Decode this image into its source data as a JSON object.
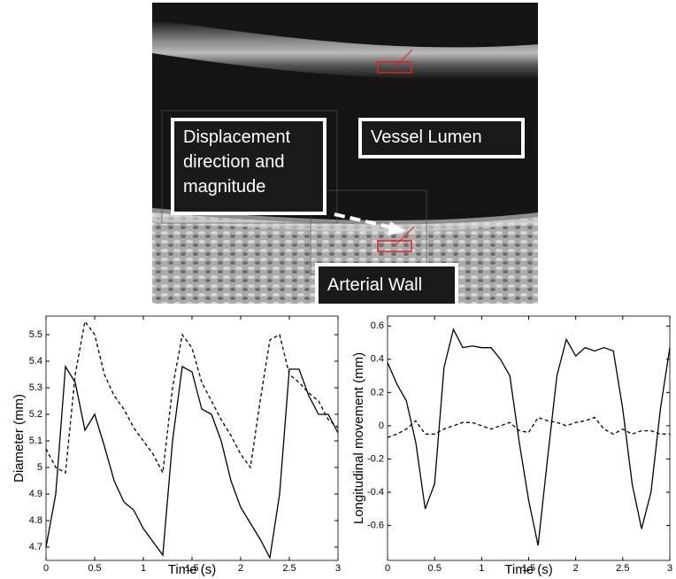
{
  "image_labels": {
    "displacement": "Displacement direction and magnitude",
    "lumen": "Vessel Lumen",
    "wall": "Arterial Wall"
  },
  "chart_data": [
    {
      "type": "line",
      "ylabel": "Diameter (mm)",
      "xlabel": "Time (s)",
      "x": [
        0,
        0.1,
        0.2,
        0.3,
        0.4,
        0.5,
        0.6,
        0.7,
        0.8,
        0.9,
        1,
        1.1,
        1.2,
        1.3,
        1.4,
        1.5,
        1.6,
        1.7,
        1.8,
        1.9,
        2,
        2.1,
        2.2,
        2.3,
        2.4,
        2.5,
        2.6,
        2.7,
        2.8,
        2.9,
        3
      ],
      "series": [
        {
          "color": "#000000",
          "dash": false,
          "values": [
            4.7,
            4.9,
            5.38,
            5.32,
            5.14,
            5.2,
            5.08,
            4.95,
            4.87,
            4.84,
            4.77,
            4.72,
            4.67,
            5.1,
            5.38,
            5.36,
            5.22,
            5.2,
            5.1,
            4.95,
            4.85,
            4.79,
            4.73,
            4.66,
            4.9,
            5.37,
            5.37,
            5.27,
            5.2,
            5.2,
            5.13
          ]
        },
        {
          "color": "#000000",
          "dash": true,
          "values": [
            5.07,
            5.0,
            4.98,
            5.35,
            5.55,
            5.5,
            5.35,
            5.27,
            5.22,
            5.15,
            5.1,
            5.05,
            4.98,
            5.3,
            5.5,
            5.45,
            5.32,
            5.25,
            5.18,
            5.12,
            5.05,
            5.0,
            5.25,
            5.48,
            5.5,
            5.35,
            5.32,
            5.28,
            5.25,
            5.18,
            5.15
          ]
        }
      ],
      "xlim": [
        0,
        3
      ],
      "xticks": [
        0,
        0.5,
        1,
        1.5,
        2,
        2.5,
        3
      ],
      "ylim": [
        4.65,
        5.57
      ],
      "yticks": [
        4.7,
        4.8,
        4.9,
        5,
        5.1,
        5.2,
        5.3,
        5.4,
        5.5
      ]
    },
    {
      "type": "line",
      "ylabel": "Longitudinal movement (mm)",
      "xlabel": "Time (s)",
      "x": [
        0,
        0.1,
        0.2,
        0.3,
        0.4,
        0.5,
        0.6,
        0.7,
        0.8,
        0.9,
        1,
        1.1,
        1.2,
        1.3,
        1.4,
        1.5,
        1.6,
        1.7,
        1.8,
        1.9,
        2,
        2.1,
        2.2,
        2.3,
        2.4,
        2.5,
        2.6,
        2.7,
        2.8,
        2.9,
        3
      ],
      "series": [
        {
          "color": "#000000",
          "dash": false,
          "values": [
            0.38,
            0.25,
            0.15,
            -0.1,
            -0.5,
            -0.35,
            0.35,
            0.58,
            0.47,
            0.48,
            0.47,
            0.47,
            0.4,
            0.3,
            -0.1,
            -0.45,
            -0.72,
            -0.2,
            0.3,
            0.52,
            0.42,
            0.47,
            0.45,
            0.47,
            0.45,
            0.1,
            -0.35,
            -0.62,
            -0.4,
            0.1,
            0.47
          ]
        },
        {
          "color": "#000000",
          "dash": true,
          "values": [
            -0.07,
            -0.05,
            -0.02,
            0.03,
            -0.05,
            -0.05,
            -0.02,
            0,
            0.02,
            0.02,
            0,
            -0.02,
            0,
            0.02,
            -0.03,
            -0.04,
            0.05,
            0.03,
            0.02,
            0,
            0.02,
            0.03,
            0.05,
            -0.02,
            -0.05,
            -0.02,
            -0.05,
            -0.03,
            -0.03,
            -0.05,
            -0.05
          ]
        }
      ],
      "xlim": [
        0,
        3
      ],
      "xticks": [
        0,
        0.5,
        1,
        1.5,
        2,
        2.5,
        3
      ],
      "ylim": [
        -0.81,
        0.66
      ],
      "yticks": [
        -0.6,
        -0.4,
        -0.2,
        0,
        0.2,
        0.4,
        0.6
      ]
    }
  ]
}
